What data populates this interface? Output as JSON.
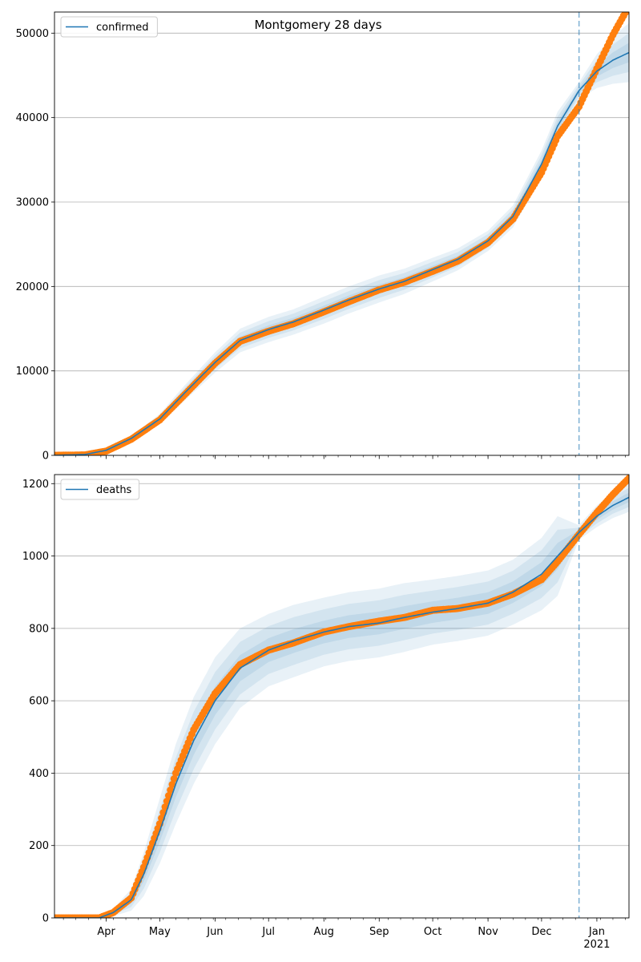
{
  "title": "Montgomery 28 days",
  "chart_data": [
    {
      "type": "line",
      "legend": "confirmed",
      "legend_position": "upper left",
      "grid": "horizontal",
      "ylim": [
        0,
        52500
      ],
      "yticks": [
        0,
        10000,
        20000,
        30000,
        40000,
        50000
      ],
      "xlim": [
        "2020-03-03",
        "2021-01-19"
      ],
      "xtick_labels": [
        "Apr",
        "May",
        "Jun",
        "Jul",
        "Aug",
        "Sep",
        "Oct",
        "Nov",
        "Dec",
        "Jan"
      ],
      "year_label": "2021",
      "forecast_start": "2020-12-22",
      "colors": {
        "model": "#1f77b4",
        "observed": "#ff7f0e",
        "band": "#1f77b4",
        "divider": "#1f77b4"
      },
      "model_line": {
        "x": [
          "2020-03-03",
          "2020-03-20",
          "2020-04-01",
          "2020-04-15",
          "2020-05-01",
          "2020-05-15",
          "2020-06-01",
          "2020-06-15",
          "2020-07-01",
          "2020-07-15",
          "2020-08-01",
          "2020-08-15",
          "2020-09-01",
          "2020-09-15",
          "2020-10-01",
          "2020-10-15",
          "2020-11-01",
          "2020-11-15",
          "2020-12-01",
          "2020-12-10",
          "2020-12-22",
          "2021-01-01",
          "2021-01-10",
          "2021-01-19"
        ],
        "y": [
          0,
          100,
          600,
          2000,
          4300,
          7400,
          11000,
          13600,
          14900,
          15800,
          17200,
          18400,
          19700,
          20600,
          22000,
          23200,
          25400,
          28300,
          34500,
          39000,
          43200,
          45500,
          46800,
          47700
        ],
        "band_width": [
          0,
          20,
          150,
          300,
          600,
          900,
          1200,
          1400,
          1500,
          1500,
          1600,
          1600,
          1600,
          1500,
          1400,
          1300,
          1200,
          1300,
          1600,
          1700,
          1000,
          2000,
          2800,
          3500
        ]
      },
      "observed": {
        "x": [
          "2020-03-03",
          "2020-03-20",
          "2020-04-01",
          "2020-04-15",
          "2020-05-01",
          "2020-05-15",
          "2020-06-01",
          "2020-06-15",
          "2020-07-01",
          "2020-07-15",
          "2020-08-01",
          "2020-08-15",
          "2020-09-01",
          "2020-09-15",
          "2020-10-01",
          "2020-10-15",
          "2020-11-01",
          "2020-11-15",
          "2020-12-01",
          "2020-12-10",
          "2020-12-22",
          "2021-01-01",
          "2021-01-10",
          "2021-01-19"
        ],
        "y": [
          0,
          50,
          500,
          1900,
          4200,
          7200,
          10900,
          13500,
          14700,
          15600,
          17000,
          18200,
          19600,
          20500,
          21800,
          23000,
          25200,
          28000,
          33500,
          37800,
          41300,
          45800,
          49800,
          53200
        ]
      }
    },
    {
      "type": "line",
      "legend": "deaths",
      "legend_position": "upper left",
      "grid": "horizontal",
      "ylim": [
        0,
        1225
      ],
      "yticks": [
        0,
        200,
        400,
        600,
        800,
        1000,
        1200
      ],
      "xlim": [
        "2020-03-03",
        "2021-01-19"
      ],
      "xtick_labels": [
        "Apr",
        "May",
        "Jun",
        "Jul",
        "Aug",
        "Sep",
        "Oct",
        "Nov",
        "Dec",
        "Jan"
      ],
      "year_label": "2021",
      "forecast_start": "2020-12-22",
      "colors": {
        "model": "#1f77b4",
        "observed": "#ff7f0e",
        "band": "#1f77b4",
        "divider": "#1f77b4"
      },
      "model_line": {
        "x": [
          "2020-03-03",
          "2020-03-28",
          "2020-04-05",
          "2020-04-15",
          "2020-04-22",
          "2020-05-01",
          "2020-05-10",
          "2020-05-20",
          "2020-06-01",
          "2020-06-15",
          "2020-07-01",
          "2020-07-15",
          "2020-08-01",
          "2020-08-15",
          "2020-09-01",
          "2020-09-15",
          "2020-10-01",
          "2020-10-15",
          "2020-11-01",
          "2020-11-15",
          "2020-12-01",
          "2020-12-10",
          "2020-12-22",
          "2021-01-01",
          "2021-01-10",
          "2021-01-19"
        ],
        "y": [
          0,
          0,
          15,
          50,
          120,
          240,
          370,
          490,
          600,
          690,
          740,
          765,
          790,
          805,
          815,
          830,
          845,
          855,
          870,
          900,
          950,
          1000,
          1065,
          1110,
          1140,
          1162
        ],
        "band_width": [
          0,
          0,
          10,
          30,
          60,
          90,
          110,
          120,
          120,
          110,
          100,
          100,
          95,
          95,
          95,
          95,
          90,
          90,
          90,
          90,
          100,
          110,
          20,
          30,
          35,
          40
        ]
      },
      "observed": {
        "x": [
          "2020-03-03",
          "2020-03-28",
          "2020-04-05",
          "2020-04-15",
          "2020-04-22",
          "2020-05-01",
          "2020-05-10",
          "2020-05-20",
          "2020-06-01",
          "2020-06-15",
          "2020-07-01",
          "2020-07-15",
          "2020-08-01",
          "2020-08-15",
          "2020-09-01",
          "2020-09-15",
          "2020-10-01",
          "2020-10-15",
          "2020-11-01",
          "2020-11-15",
          "2020-12-01",
          "2020-12-10",
          "2020-12-22",
          "2021-01-01",
          "2021-01-10",
          "2021-01-19"
        ],
        "y": [
          0,
          0,
          15,
          55,
          140,
          260,
          400,
          520,
          620,
          700,
          740,
          760,
          790,
          805,
          820,
          830,
          850,
          855,
          870,
          895,
          935,
          985,
          1060,
          1120,
          1170,
          1215
        ]
      }
    }
  ]
}
